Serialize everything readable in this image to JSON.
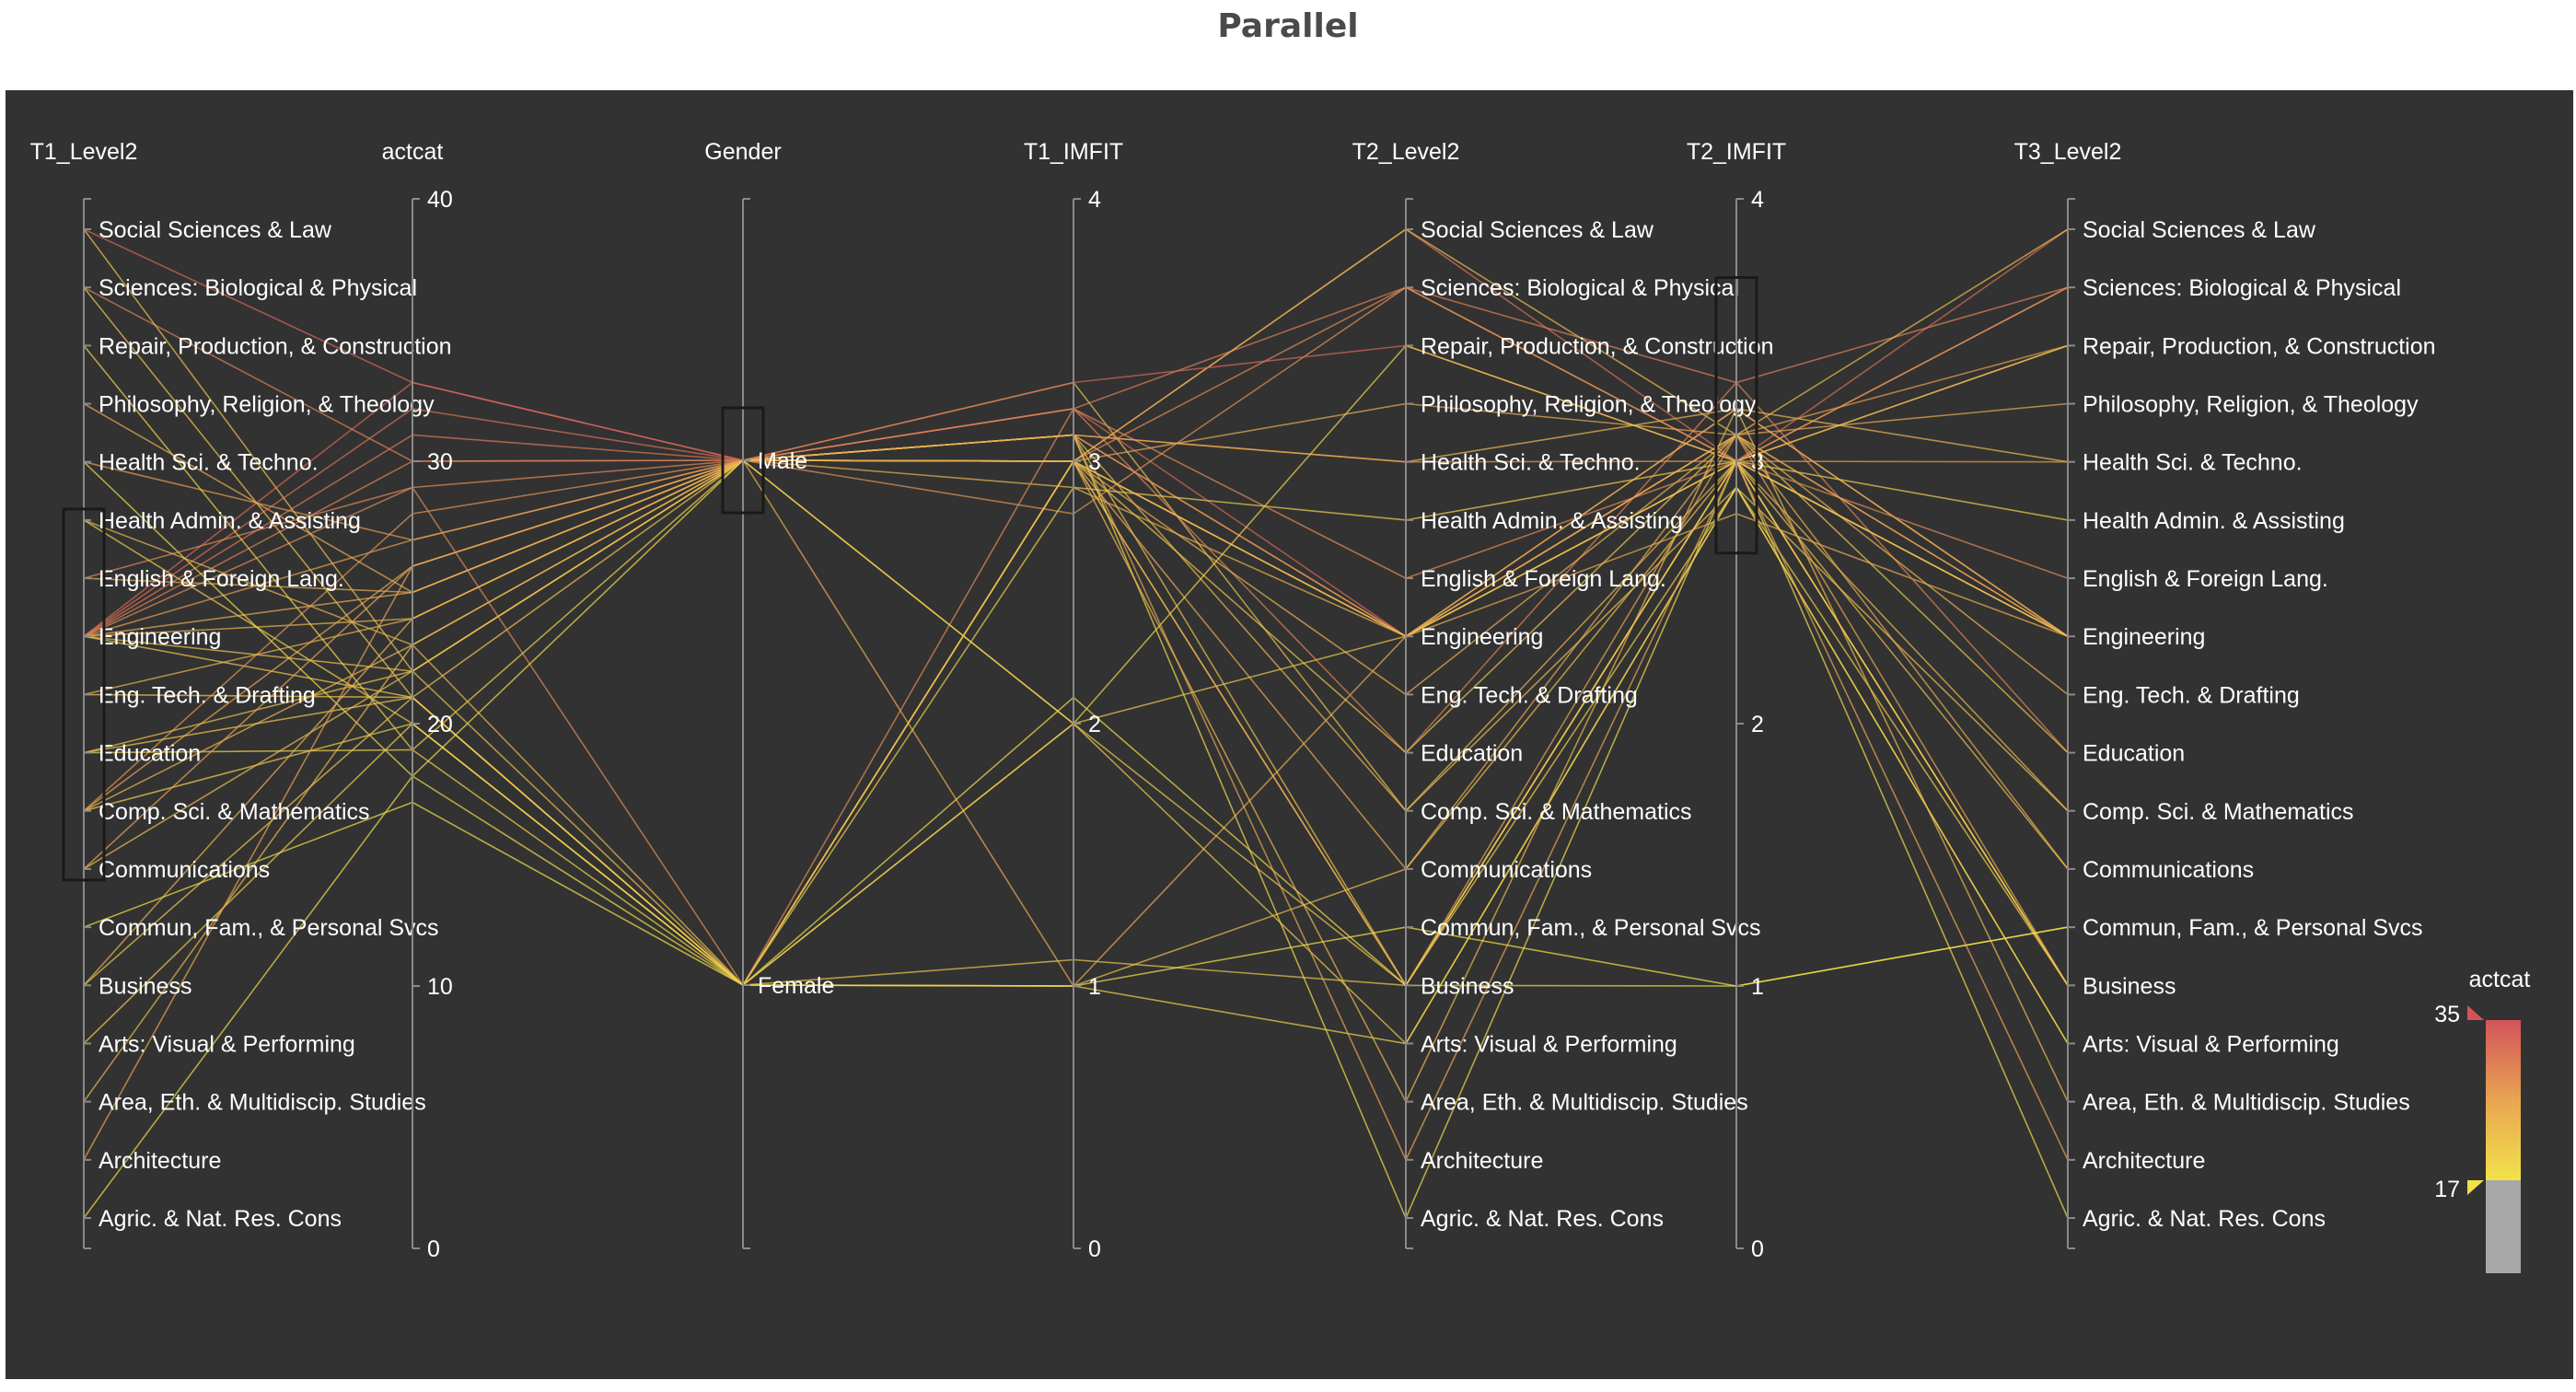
{
  "title": "Parallel",
  "colors": {
    "panel_background": "#323232",
    "line_low": "#f2e24a",
    "line_mid": "#e8a552",
    "line_high": "#d2545a",
    "below_range": "#a8a8a8",
    "axis": "#8a8a8a",
    "text": "#ffffff"
  },
  "chart_data": {
    "type": "parallel-coordinates",
    "color_dimension": "actcat",
    "color_scale": {
      "label": "actcat",
      "min": 17,
      "max": 35
    },
    "axes": [
      {
        "name": "T1_Level2",
        "kind": "category",
        "categories": [
          "Social Sciences & Law",
          "Sciences: Biological & Physical",
          "Repair, Production, & Construction",
          "Philosophy, Religion, & Theology",
          "Health Sci. & Techno.",
          "Health Admin. & Assisting",
          "English & Foreign Lang.",
          "Engineering",
          "Eng. Tech. & Drafting",
          "Education",
          "Comp. Sci. & Mathematics",
          "Communications",
          "Commun, Fam., & Personal Svcs",
          "Business",
          "Arts: Visual & Performing",
          "Area, Eth. & Multidiscip. Studies",
          "Architecture",
          "Agric. & Nat. Res. Cons"
        ],
        "brush": [
          "Health Admin. & Assisting",
          "Communications"
        ]
      },
      {
        "name": "actcat",
        "kind": "numeric",
        "range": [
          0,
          40
        ],
        "ticks": [
          "0",
          "10",
          "20",
          "30",
          "40"
        ]
      },
      {
        "name": "Gender",
        "kind": "category",
        "categories": [
          "Male",
          "Female"
        ],
        "brush": [
          "Male",
          "Male"
        ]
      },
      {
        "name": "T1_IMFIT",
        "kind": "numeric",
        "range": [
          0,
          4
        ],
        "ticks": [
          "0",
          "1",
          "2",
          "3",
          "4"
        ]
      },
      {
        "name": "T2_Level2",
        "kind": "category",
        "categories": [
          "Social Sciences & Law",
          "Sciences: Biological & Physical",
          "Repair, Production, & Construction",
          "Philosophy, Religion, & Theology",
          "Health Sci. & Techno.",
          "Health Admin. & Assisting",
          "English & Foreign Lang.",
          "Engineering",
          "Eng. Tech. & Drafting",
          "Education",
          "Comp. Sci. & Mathematics",
          "Communications",
          "Commun, Fam., & Personal Svcs",
          "Business",
          "Arts: Visual & Performing",
          "Area, Eth. & Multidiscip. Studies",
          "Architecture",
          "Agric. & Nat. Res. Cons"
        ]
      },
      {
        "name": "T2_IMFIT",
        "kind": "numeric",
        "range": [
          0,
          4
        ],
        "ticks": [
          "0",
          "1",
          "2",
          "3",
          "4"
        ],
        "brush": [
          2.65,
          3.7
        ]
      },
      {
        "name": "T3_Level2",
        "kind": "category",
        "categories": [
          "Social Sciences & Law",
          "Sciences: Biological & Physical",
          "Repair, Production, & Construction",
          "Philosophy, Religion, & Theology",
          "Health Sci. & Techno.",
          "Health Admin. & Assisting",
          "English & Foreign Lang.",
          "Engineering",
          "Eng. Tech. & Drafting",
          "Education",
          "Comp. Sci. & Mathematics",
          "Communications",
          "Commun, Fam., & Personal Svcs",
          "Business",
          "Arts: Visual & Performing",
          "Area, Eth. & Multidiscip. Studies",
          "Architecture",
          "Agric. & Nat. Res. Cons"
        ]
      }
    ],
    "records": [
      [
        "Engineering",
        31,
        "Male",
        3.1,
        "Engineering",
        3.0,
        "Engineering"
      ],
      [
        "Engineering",
        33,
        "Male",
        3.2,
        "Engineering",
        3.1,
        "Engineering"
      ],
      [
        "Engineering",
        29,
        "Male",
        3.0,
        "Sciences: Biological & Physical",
        3.0,
        "Sciences: Biological & Physical"
      ],
      [
        "Engineering",
        24,
        "Male",
        2.9,
        "Engineering",
        3.2,
        "Engineering"
      ],
      [
        "Engineering",
        22,
        "Male",
        3.3,
        "Comp. Sci. & Mathematics",
        2.9,
        "Comp. Sci. & Mathematics"
      ],
      [
        "Engineering",
        27,
        "Male",
        3.1,
        "Engineering",
        3.1,
        "Repair, Production, & Construction"
      ],
      [
        "Engineering",
        32,
        "Male",
        3.0,
        "Social Sciences & Law",
        3.0,
        "Social Sciences & Law"
      ],
      [
        "Engineering",
        21,
        "Female",
        2.0,
        "Business",
        3.0,
        "Business"
      ],
      [
        "Engineering",
        25,
        "Male",
        1.0,
        "Engineering",
        2.8,
        "Engineering"
      ],
      [
        "Engineering",
        30,
        "Male",
        3.2,
        "Education",
        3.3,
        "Education"
      ],
      [
        "Comp. Sci. & Mathematics",
        23,
        "Male",
        3.1,
        "Comp. Sci. & Mathematics",
        3.0,
        "Comp. Sci. & Mathematics"
      ],
      [
        "Comp. Sci. & Mathematics",
        26,
        "Male",
        3.0,
        "Engineering",
        3.2,
        "Engineering"
      ],
      [
        "Comp. Sci. & Mathematics",
        20,
        "Female",
        3.0,
        "Business",
        2.9,
        "Business"
      ],
      [
        "Comp. Sci. & Mathematics",
        28,
        "Male",
        2.8,
        "Sciences: Biological & Physical",
        3.0,
        "Sciences: Biological & Physical"
      ],
      [
        "Education",
        21,
        "Female",
        3.0,
        "Education",
        3.1,
        "Education"
      ],
      [
        "Education",
        19,
        "Female",
        1.0,
        "Arts: Visual & Performing",
        2.9,
        "Arts: Visual & Performing"
      ],
      [
        "Education",
        22,
        "Male",
        3.1,
        "Business",
        3.0,
        "Business"
      ],
      [
        "Eng. Tech. & Drafting",
        24,
        "Male",
        3.0,
        "Eng. Tech. & Drafting",
        3.1,
        "Eng. Tech. & Drafting"
      ],
      [
        "Eng. Tech. & Drafting",
        21,
        "Male",
        2.0,
        "Engineering",
        3.0,
        "Engineering"
      ],
      [
        "English & Foreign Lang.",
        29,
        "Female",
        3.2,
        "English & Foreign Lang.",
        3.0,
        "English & Foreign Lang."
      ],
      [
        "English & Foreign Lang.",
        25,
        "Male",
        3.0,
        "Communications",
        3.1,
        "Communications"
      ],
      [
        "Health Admin. & Assisting",
        20,
        "Female",
        2.9,
        "Health Admin. & Assisting",
        3.0,
        "Health Admin. & Assisting"
      ],
      [
        "Health Admin. & Assisting",
        23,
        "Male",
        3.1,
        "Health Sci. & Techno.",
        3.2,
        "Health Sci. & Techno."
      ],
      [
        "Communications",
        22,
        "Female",
        1.0,
        "Communications",
        3.0,
        "Communications"
      ],
      [
        "Communications",
        26,
        "Male",
        3.0,
        "Business",
        3.1,
        "Business"
      ],
      [
        "Health Sci. & Techno.",
        27,
        "Male",
        3.1,
        "Health Sci. & Techno.",
        3.0,
        "Health Sci. & Techno."
      ],
      [
        "Health Sci. & Techno.",
        18,
        "Female",
        2.1,
        "Business",
        1.0,
        "Commun, Fam., & Personal Svcs"
      ],
      [
        "Sciences: Biological & Physical",
        30,
        "Male",
        3.2,
        "Sciences: Biological & Physical",
        3.3,
        "Sciences: Biological & Physical"
      ],
      [
        "Sciences: Biological & Physical",
        21,
        "Female",
        3.0,
        "Engineering",
        3.0,
        "Engineering"
      ],
      [
        "Social Sciences & Law",
        22,
        "Male",
        3.0,
        "Social Sciences & Law",
        3.1,
        "Social Sciences & Law"
      ],
      [
        "Social Sciences & Law",
        33,
        "Male",
        3.3,
        "Repair, Production, & Construction",
        3.0,
        "Repair, Production, & Construction"
      ],
      [
        "Business",
        21,
        "Female",
        1.1,
        "Business",
        3.0,
        "Business"
      ],
      [
        "Business",
        24,
        "Male",
        3.0,
        "Engineering",
        3.1,
        "Engineering"
      ],
      [
        "Arts: Visual & Performing",
        20,
        "Female",
        2.0,
        "Arts: Visual & Performing",
        2.9,
        "Arts: Visual & Performing"
      ],
      [
        "Agric. & Nat. Res. Cons",
        18,
        "Male",
        3.1,
        "Agric. & Nat. Res. Cons",
        3.0,
        "Agric. & Nat. Res. Cons"
      ],
      [
        "Philosophy, Religion, & Theology",
        25,
        "Male",
        3.0,
        "Philosophy, Religion, & Theology",
        3.1,
        "Philosophy, Religion, & Theology"
      ],
      [
        "Repair, Production, & Construction",
        19,
        "Male",
        2.0,
        "Repair, Production, & Construction",
        3.0,
        "Repair, Production, & Construction"
      ],
      [
        "Area, Eth. & Multidiscip. Studies",
        23,
        "Female",
        3.0,
        "Area, Eth. & Multidiscip. Studies",
        3.2,
        "Area, Eth. & Multidiscip. Studies"
      ],
      [
        "Architecture",
        26,
        "Male",
        3.1,
        "Architecture",
        3.0,
        "Architecture"
      ],
      [
        "Commun, Fam., & Personal Svcs",
        17,
        "Female",
        1.0,
        "Commun, Fam., & Personal Svcs",
        1.0,
        "Commun, Fam., & Personal Svcs"
      ]
    ]
  }
}
